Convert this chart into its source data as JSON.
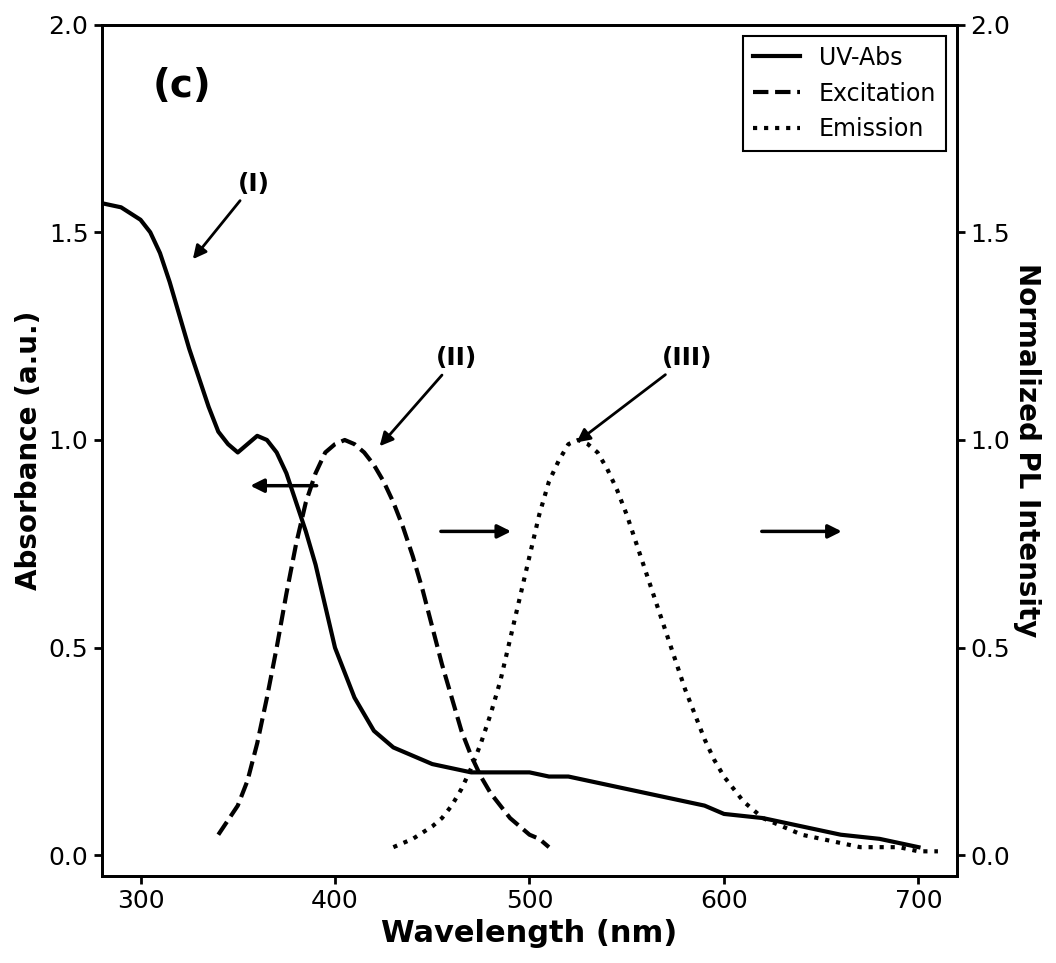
{
  "title_label": "(c)",
  "xlabel": "Wavelength (nm)",
  "ylabel_left": "Absorbance (a.u.)",
  "ylabel_right": "Normalized PL Intensity",
  "xlim": [
    280,
    720
  ],
  "ylim_left": [
    -0.05,
    2.0
  ],
  "ylim_right": [
    -0.05,
    2.0
  ],
  "xticks": [
    300,
    400,
    500,
    600,
    700
  ],
  "yticks_left": [
    0.0,
    0.5,
    1.0,
    1.5,
    2.0
  ],
  "yticks_right": [
    0.0,
    0.5,
    1.0,
    1.5,
    2.0
  ],
  "uv_abs": {
    "x": [
      280,
      290,
      300,
      305,
      310,
      315,
      320,
      325,
      330,
      335,
      340,
      345,
      350,
      355,
      360,
      365,
      370,
      375,
      380,
      385,
      390,
      395,
      400,
      410,
      420,
      430,
      440,
      450,
      460,
      470,
      480,
      490,
      500,
      510,
      520,
      530,
      540,
      550,
      560,
      570,
      580,
      590,
      600,
      620,
      640,
      660,
      680,
      700
    ],
    "y": [
      1.57,
      1.56,
      1.53,
      1.5,
      1.45,
      1.38,
      1.3,
      1.22,
      1.15,
      1.08,
      1.02,
      0.99,
      0.97,
      0.99,
      1.01,
      1.0,
      0.97,
      0.92,
      0.85,
      0.78,
      0.7,
      0.6,
      0.5,
      0.38,
      0.3,
      0.26,
      0.24,
      0.22,
      0.21,
      0.2,
      0.2,
      0.2,
      0.2,
      0.19,
      0.19,
      0.18,
      0.17,
      0.16,
      0.15,
      0.14,
      0.13,
      0.12,
      0.1,
      0.09,
      0.07,
      0.05,
      0.04,
      0.02
    ],
    "style": "solid",
    "linewidth": 3,
    "color": "black",
    "label": "UV-Abs"
  },
  "excitation": {
    "x": [
      340,
      350,
      355,
      360,
      365,
      370,
      375,
      380,
      385,
      390,
      395,
      400,
      405,
      410,
      415,
      420,
      425,
      430,
      435,
      440,
      445,
      450,
      455,
      460,
      465,
      470,
      475,
      480,
      485,
      490,
      495,
      500,
      505,
      510
    ],
    "y": [
      0.05,
      0.12,
      0.18,
      0.27,
      0.38,
      0.5,
      0.63,
      0.75,
      0.85,
      0.92,
      0.97,
      0.99,
      1.0,
      0.99,
      0.97,
      0.94,
      0.9,
      0.85,
      0.79,
      0.72,
      0.64,
      0.55,
      0.46,
      0.38,
      0.3,
      0.24,
      0.19,
      0.15,
      0.12,
      0.09,
      0.07,
      0.05,
      0.04,
      0.02
    ],
    "style": "dashed",
    "linewidth": 3,
    "color": "black",
    "label": "Excitation"
  },
  "emission": {
    "x": [
      430,
      440,
      450,
      455,
      460,
      465,
      470,
      475,
      480,
      485,
      490,
      495,
      500,
      505,
      510,
      515,
      520,
      525,
      530,
      535,
      540,
      545,
      550,
      555,
      560,
      565,
      570,
      575,
      580,
      585,
      590,
      595,
      600,
      610,
      620,
      630,
      640,
      650,
      660,
      670,
      680,
      690,
      700,
      710
    ],
    "y": [
      0.02,
      0.04,
      0.07,
      0.09,
      0.12,
      0.16,
      0.21,
      0.27,
      0.34,
      0.42,
      0.52,
      0.62,
      0.72,
      0.82,
      0.9,
      0.95,
      0.99,
      1.0,
      0.99,
      0.97,
      0.93,
      0.88,
      0.82,
      0.75,
      0.68,
      0.61,
      0.54,
      0.47,
      0.4,
      0.34,
      0.28,
      0.23,
      0.19,
      0.13,
      0.09,
      0.07,
      0.05,
      0.04,
      0.03,
      0.02,
      0.02,
      0.02,
      0.01,
      0.01
    ],
    "style": "dotted",
    "linewidth": 3,
    "color": "black",
    "label": "Emission"
  },
  "legend": {
    "loc": "upper right",
    "fontsize": 17
  },
  "figsize": [
    10.56,
    9.63
  ],
  "dpi": 100
}
